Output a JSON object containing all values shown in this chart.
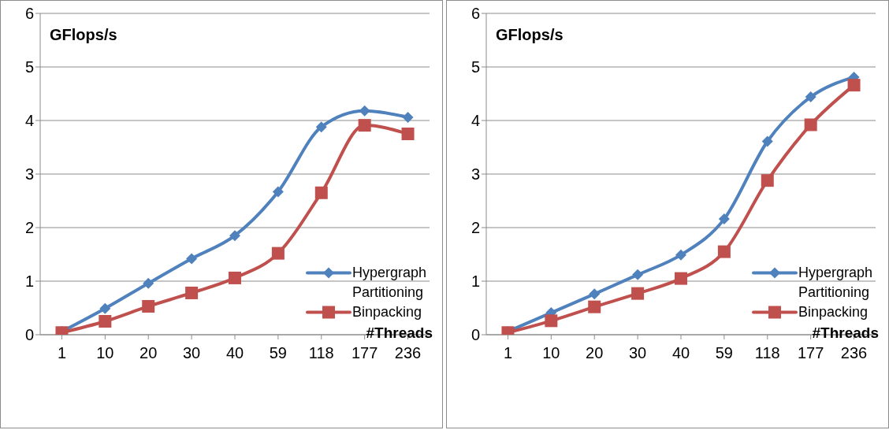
{
  "chart_data": [
    {
      "type": "line",
      "ylabel": "GFlops/s",
      "xlabel": "#Threads",
      "categories": [
        "1",
        "10",
        "20",
        "30",
        "40",
        "59",
        "118",
        "177",
        "236"
      ],
      "ylim": [
        0,
        6
      ],
      "yticks": [
        0,
        1,
        2,
        3,
        4,
        5,
        6
      ],
      "grid": "y",
      "legend": "bottom right",
      "series": [
        {
          "name": "Hypergraph Partitioning",
          "color": "#4f81bd",
          "marker": "diamond",
          "values": [
            0.06,
            0.49,
            0.96,
            1.42,
            1.85,
            2.67,
            3.88,
            4.18,
            4.06
          ]
        },
        {
          "name": "Binpacking",
          "color": "#c0504d",
          "marker": "square",
          "values": [
            0.04,
            0.25,
            0.53,
            0.78,
            1.06,
            1.52,
            2.65,
            3.91,
            3.75
          ]
        }
      ]
    },
    {
      "type": "line",
      "ylabel": "GFlops/s",
      "xlabel": "#Threads",
      "categories": [
        "1",
        "10",
        "20",
        "30",
        "40",
        "59",
        "118",
        "177",
        "236"
      ],
      "ylim": [
        0,
        6
      ],
      "yticks": [
        0,
        1,
        2,
        3,
        4,
        5,
        6
      ],
      "grid": "y",
      "legend": "bottom right",
      "series": [
        {
          "name": "Hypergraph Partitioning",
          "color": "#4f81bd",
          "marker": "diamond",
          "values": [
            0.06,
            0.41,
            0.76,
            1.12,
            1.49,
            2.16,
            3.61,
            4.44,
            4.81
          ]
        },
        {
          "name": "Binpacking",
          "color": "#c0504d",
          "marker": "square",
          "values": [
            0.04,
            0.26,
            0.52,
            0.77,
            1.05,
            1.55,
            2.88,
            3.92,
            4.66
          ]
        }
      ]
    }
  ]
}
